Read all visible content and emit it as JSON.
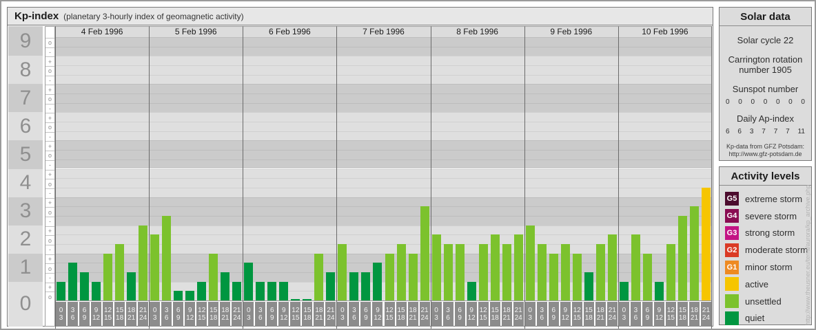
{
  "title": {
    "main": "Kp-index",
    "subtitle": "(planetary 3-hourly index of geomagnetic activity)"
  },
  "chart_data": {
    "type": "bar",
    "title": "Kp-index (planetary 3-hourly index of geomagnetic activity)",
    "ylabel": "Kp",
    "y_axis_numbers": [
      "9",
      "8",
      "7",
      "6",
      "5",
      "4",
      "3",
      "2",
      "1",
      "0"
    ],
    "y_sub_marks": [
      "o",
      "-",
      "+",
      "o",
      "-",
      "+",
      "o",
      "-",
      "+",
      "o",
      "-",
      "+",
      "o",
      "-",
      "+",
      "o",
      "-",
      "+",
      "o",
      "-",
      "+",
      "o",
      "-",
      "+",
      "o",
      "-",
      "+",
      "o"
    ],
    "ylim_thirds": [
      0,
      28
    ],
    "time_slot_labels": [
      [
        "0",
        "3"
      ],
      [
        "3",
        "6"
      ],
      [
        "6",
        "9"
      ],
      [
        "9",
        "12"
      ],
      [
        "12",
        "15"
      ],
      [
        "15",
        "18"
      ],
      [
        "18",
        "21"
      ],
      [
        "21",
        "24"
      ]
    ],
    "kp_step_labels": [
      "0o",
      "0+",
      "1-",
      "1o",
      "1+",
      "2-",
      "2o",
      "2+",
      "3-",
      "3o",
      "3+",
      "4-",
      "4o"
    ],
    "color_thresholds_thirds": {
      "quiet_max": 4,
      "unsettled_max": 10,
      "active_max": 13
    },
    "days": [
      {
        "date": "4 Feb 1996",
        "kp": [
          "1-",
          "1+",
          "1o",
          "1-",
          "2-",
          "2o",
          "1o",
          "3-"
        ],
        "thirds": [
          2,
          4,
          3,
          2,
          5,
          6,
          3,
          8
        ]
      },
      {
        "date": "5 Feb 1996",
        "kp": [
          "2+",
          "3o",
          "0+",
          "0+",
          "1-",
          "2-",
          "1o",
          "1-"
        ],
        "thirds": [
          7,
          9,
          1,
          1,
          2,
          5,
          3,
          2
        ]
      },
      {
        "date": "6 Feb 1996",
        "kp": [
          "1+",
          "1-",
          "1-",
          "1-",
          "0o",
          "0o",
          "2-",
          "1o"
        ],
        "thirds": [
          4,
          2,
          2,
          2,
          0,
          0,
          5,
          3
        ]
      },
      {
        "date": "7 Feb 1996",
        "kp": [
          "2o",
          "1o",
          "1o",
          "1+",
          "2-",
          "2o",
          "2-",
          "3+"
        ],
        "thirds": [
          6,
          3,
          3,
          4,
          5,
          6,
          5,
          10
        ]
      },
      {
        "date": "8 Feb 1996",
        "kp": [
          "2+",
          "2o",
          "2o",
          "1-",
          "2o",
          "2+",
          "2o",
          "2+"
        ],
        "thirds": [
          7,
          6,
          6,
          2,
          6,
          7,
          6,
          7
        ]
      },
      {
        "date": "9 Feb 1996",
        "kp": [
          "3-",
          "2o",
          "2-",
          "2o",
          "2-",
          "1o",
          "2o",
          "2+"
        ],
        "thirds": [
          8,
          6,
          5,
          6,
          5,
          3,
          6,
          7
        ]
      },
      {
        "date": "10 Feb 1996",
        "kp": [
          "1-",
          "2+",
          "2-",
          "1-",
          "2o",
          "3o",
          "3+",
          "4o"
        ],
        "thirds": [
          2,
          7,
          5,
          2,
          6,
          9,
          10,
          12
        ]
      }
    ]
  },
  "colors": {
    "quiet": "#009640",
    "unsettled": "#7cc22d",
    "active": "#f6c500",
    "band_dark": "#cbcbcb",
    "band_light": "#dfdfdf"
  },
  "solar": {
    "title": "Solar data",
    "cycle": "Solar cycle 22",
    "carrington": "Carrington rotation number 1905",
    "sunspot_heading": "Sunspot number",
    "sunspot_values": [
      "0",
      "0",
      "0",
      "0",
      "0",
      "0",
      "0"
    ],
    "ap_heading": "Daily Ap-index",
    "ap_values": [
      "6",
      "6",
      "3",
      "7",
      "7",
      "7",
      "11"
    ],
    "source_line1": "Kp-data from GFZ Potsdam:",
    "source_line2": "http://www.gfz-potsdam.de"
  },
  "legend": {
    "title": "Activity levels",
    "items": [
      {
        "badge": "G5",
        "label": "extreme storm",
        "color": "#4c0c2e"
      },
      {
        "badge": "G4",
        "label": "severe storm",
        "color": "#8a0c52"
      },
      {
        "badge": "G3",
        "label": "strong storm",
        "color": "#c31484"
      },
      {
        "badge": "G2",
        "label": "moderate storm",
        "color": "#da3a25"
      },
      {
        "badge": "G1",
        "label": "minor storm",
        "color": "#ee8a21"
      },
      {
        "badge": "",
        "label": "active",
        "color": "#f6c500"
      },
      {
        "badge": "",
        "label": "unsettled",
        "color": "#7cc22d"
      },
      {
        "badge": "",
        "label": "quiet",
        "color": "#009640"
      }
    ]
  },
  "watermark": "http://www.theusner.eu/terra/aurora/kp_archive.php"
}
